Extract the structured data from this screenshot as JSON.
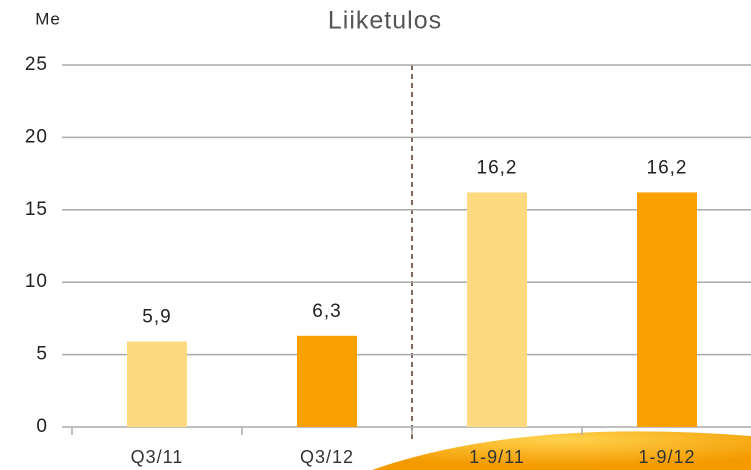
{
  "chart_data": {
    "type": "bar",
    "title": "Liiketulos",
    "ylabel": "Me",
    "categories": [
      "Q3/11",
      "Q3/12",
      "1-9/11",
      "1-9/12"
    ],
    "values": [
      5.9,
      6.3,
      16.2,
      16.2
    ],
    "value_labels": [
      "5,9",
      "6,3",
      "16,2",
      "16,2"
    ],
    "colors": [
      "#fdd97f",
      "#f9a100",
      "#fdd97f",
      "#f9a100"
    ],
    "ylim": [
      0,
      25
    ],
    "yticks": [
      0,
      5,
      10,
      15,
      20,
      25
    ],
    "grid": true
  }
}
